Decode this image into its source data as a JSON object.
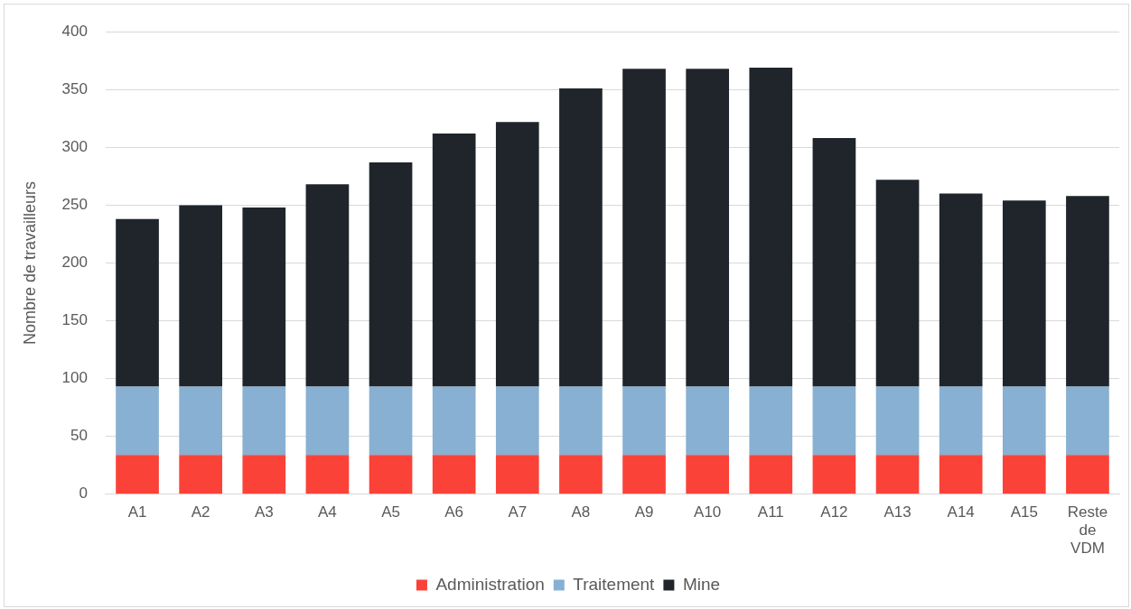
{
  "chart_data": {
    "type": "bar",
    "stacked": true,
    "ylabel": "Nombre de travailleurs",
    "categories": [
      "A1",
      "A2",
      "A3",
      "A4",
      "A5",
      "A6",
      "A7",
      "A8",
      "A9",
      "A10",
      "A11",
      "A12",
      "A13",
      "A14",
      "A15",
      "Reste de VDM"
    ],
    "series": [
      {
        "name": "Administration",
        "color": "#fb4238",
        "values": [
          34,
          34,
          34,
          34,
          34,
          34,
          34,
          34,
          34,
          34,
          34,
          34,
          34,
          34,
          34,
          34
        ]
      },
      {
        "name": "Traitement",
        "color": "#87b0d2",
        "values": [
          59,
          59,
          59,
          59,
          59,
          59,
          59,
          59,
          59,
          59,
          59,
          59,
          59,
          59,
          59,
          59
        ]
      },
      {
        "name": "Mine",
        "color": "#1f252b",
        "values": [
          145,
          157,
          155,
          175,
          194,
          219,
          229,
          258,
          275,
          275,
          276,
          215,
          179,
          167,
          161,
          165
        ]
      }
    ],
    "ylim": [
      0,
      400
    ],
    "yticks": [
      0,
      50,
      100,
      150,
      200,
      250,
      300,
      350,
      400
    ],
    "grid": "y",
    "legend": "bottom"
  }
}
